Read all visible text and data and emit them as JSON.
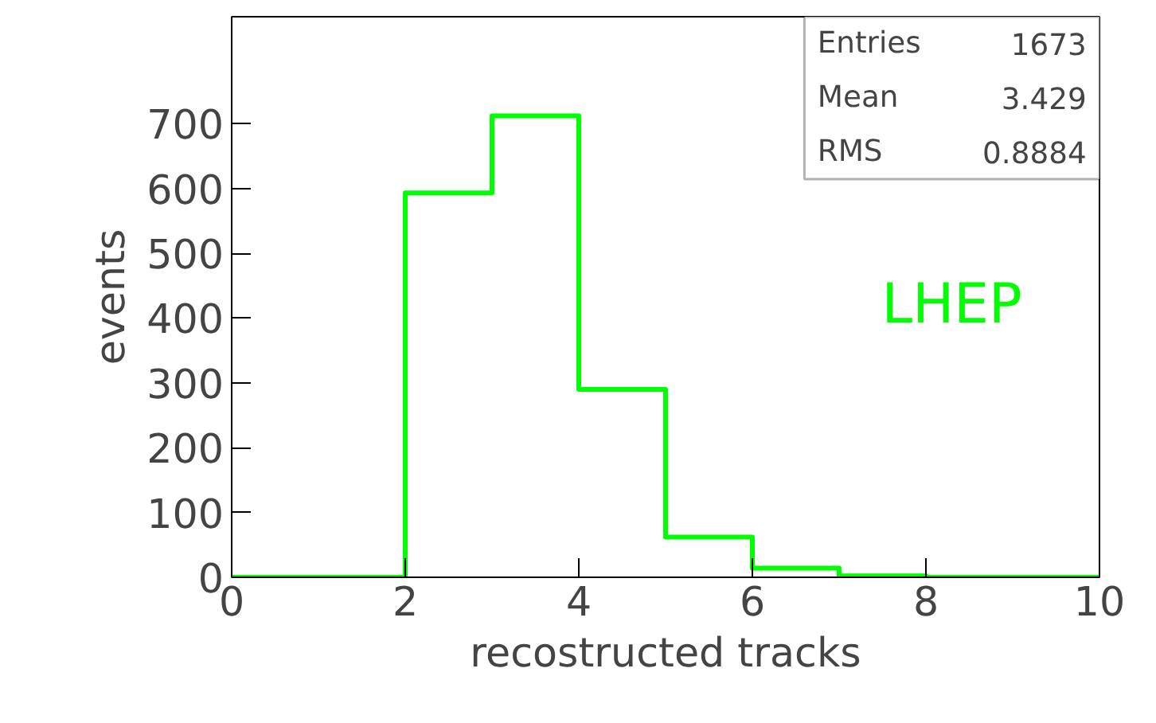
{
  "chart_data": {
    "type": "histogram",
    "xlabel": "recostructed tracks",
    "ylabel": "events",
    "bins": [
      0,
      1,
      2,
      3,
      4,
      5,
      6,
      7,
      8,
      9,
      10
    ],
    "values": [
      0,
      0,
      593,
      712,
      290,
      62,
      14,
      2,
      0,
      0
    ],
    "color": "#00ff00",
    "xlim": [
      0,
      10
    ],
    "xticks": [
      0,
      2,
      4,
      6,
      8,
      10
    ],
    "ylim": [
      0,
      865
    ],
    "yticks": [
      0,
      100,
      200,
      300,
      400,
      500,
      600,
      700
    ],
    "grid": false,
    "annotations": [
      "Entries",
      "1673",
      "Mean",
      "3.429",
      "RMS",
      "0.8884",
      "LHEP"
    ]
  }
}
